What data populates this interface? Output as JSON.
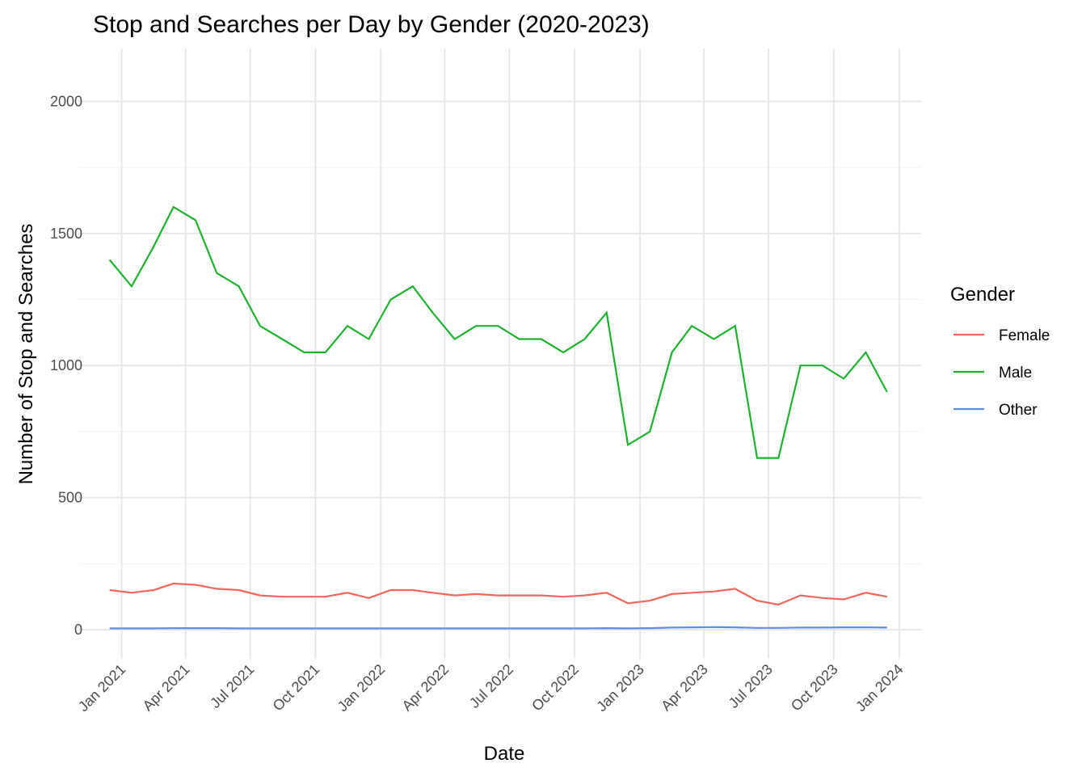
{
  "chart_data": {
    "type": "line",
    "title": "Stop and Searches per Day by Gender (2020-2023)",
    "x_label": "Date",
    "y_label": "Number of Stop and Searches",
    "legend_title": "Gender",
    "legend_position": "right",
    "grid": true,
    "x": [
      "2020-12",
      "2021-01",
      "2021-02",
      "2021-03",
      "2021-04",
      "2021-05",
      "2021-06",
      "2021-07",
      "2021-08",
      "2021-09",
      "2021-10",
      "2021-11",
      "2021-12",
      "2022-01",
      "2022-02",
      "2022-03",
      "2022-04",
      "2022-05",
      "2022-06",
      "2022-07",
      "2022-08",
      "2022-09",
      "2022-10",
      "2022-11",
      "2022-12",
      "2023-01",
      "2023-02",
      "2023-03",
      "2023-04",
      "2023-05",
      "2023-06",
      "2023-07",
      "2023-08",
      "2023-09",
      "2023-10",
      "2023-11",
      "2023-12"
    ],
    "series": [
      {
        "name": "Female",
        "color": "#f2665e",
        "values": [
          150,
          140,
          150,
          175,
          170,
          155,
          150,
          130,
          125,
          125,
          125,
          140,
          120,
          150,
          150,
          140,
          130,
          135,
          130,
          130,
          130,
          125,
          130,
          140,
          100,
          110,
          135,
          140,
          145,
          155,
          110,
          95,
          130,
          120,
          115,
          140,
          125
        ]
      },
      {
        "name": "Male",
        "color": "#1db32f",
        "values": [
          1400,
          1300,
          1450,
          1600,
          1550,
          1350,
          1300,
          1150,
          1100,
          1050,
          1050,
          1150,
          1100,
          1250,
          1300,
          1200,
          1100,
          1150,
          1150,
          1100,
          1100,
          1050,
          1100,
          1200,
          700,
          750,
          1050,
          1150,
          1100,
          1150,
          650,
          650,
          1000,
          1000,
          950,
          1050,
          900
        ]
      },
      {
        "name": "Other",
        "color": "#5c8ef2",
        "values": [
          5,
          5,
          5,
          6,
          6,
          6,
          5,
          5,
          5,
          5,
          5,
          5,
          5,
          5,
          5,
          5,
          5,
          5,
          5,
          5,
          5,
          5,
          5,
          6,
          5,
          6,
          8,
          9,
          10,
          9,
          7,
          7,
          8,
          8,
          9,
          9,
          8
        ]
      }
    ],
    "xlim": [
      "2020-11",
      "2024-02"
    ],
    "xticks": [
      {
        "value": "2021-01",
        "label": "Jan 2021"
      },
      {
        "value": "2021-04",
        "label": "Apr 2021"
      },
      {
        "value": "2021-07",
        "label": "Jul 2021"
      },
      {
        "value": "2021-10",
        "label": "Oct 2021"
      },
      {
        "value": "2022-01",
        "label": "Jan 2022"
      },
      {
        "value": "2022-04",
        "label": "Apr 2022"
      },
      {
        "value": "2022-07",
        "label": "Jul 2022"
      },
      {
        "value": "2022-10",
        "label": "Oct 2022"
      },
      {
        "value": "2023-01",
        "label": "Jan 2023"
      },
      {
        "value": "2023-04",
        "label": "Apr 2023"
      },
      {
        "value": "2023-07",
        "label": "Jul 2023"
      },
      {
        "value": "2023-10",
        "label": "Oct 2023"
      },
      {
        "value": "2024-01",
        "label": "Jan 2024"
      }
    ],
    "ylim": [
      -110,
      2200
    ],
    "yticks": [
      0,
      500,
      1000,
      1500,
      2000
    ],
    "minor_yticks": [
      250,
      750,
      1250,
      1750
    ]
  }
}
